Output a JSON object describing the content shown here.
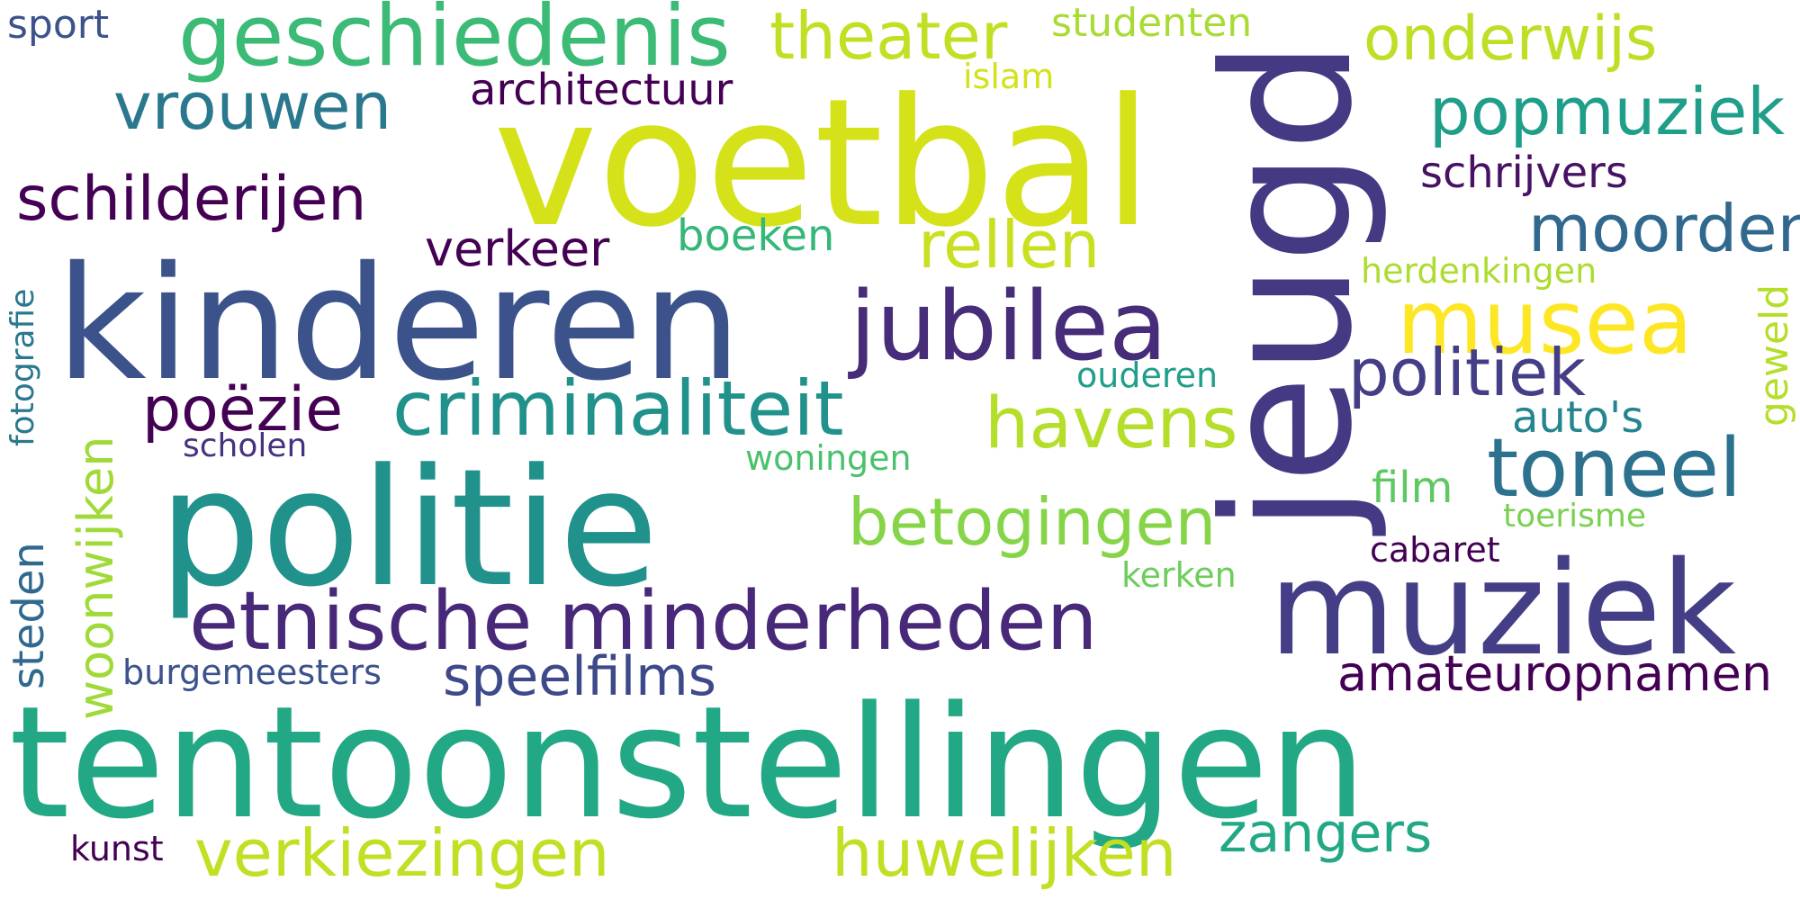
{
  "words": [
    {
      "id": "sport",
      "text": "sport",
      "color": "#3b528b"
    },
    {
      "id": "geschiedenis",
      "text": "geschiedenis",
      "color": "#3bbb75"
    },
    {
      "id": "theater",
      "text": "theater",
      "color": "#c2df23"
    },
    {
      "id": "studenten",
      "text": "studenten",
      "color": "#a8db34"
    },
    {
      "id": "onderwijs",
      "text": "onderwijs",
      "color": "#bddf26"
    },
    {
      "id": "islam",
      "text": "islam",
      "color": "#d2e21b"
    },
    {
      "id": "architectuur",
      "text": "architectuur",
      "color": "#440154"
    },
    {
      "id": "vrouwen",
      "text": "vrouwen",
      "color": "#2a788e"
    },
    {
      "id": "voetbal",
      "text": "voetbal",
      "color": "#d5e21a"
    },
    {
      "id": "jeugd",
      "text": "jeugd",
      "color": "#443983"
    },
    {
      "id": "popmuziek",
      "text": "popmuziek",
      "color": "#1f9e89"
    },
    {
      "id": "schrijvers",
      "text": "schrijvers",
      "color": "#471164"
    },
    {
      "id": "schilderijen",
      "text": "schilderijen",
      "color": "#440154"
    },
    {
      "id": "boeken",
      "text": "boeken",
      "color": "#35b779"
    },
    {
      "id": "rellen",
      "text": "rellen",
      "color": "#c8e020"
    },
    {
      "id": "verkeer",
      "text": "verkeer",
      "color": "#440154"
    },
    {
      "id": "moorden",
      "text": "moorden",
      "color": "#31688e"
    },
    {
      "id": "kinderen",
      "text": "kinderen",
      "color": "#3b528b"
    },
    {
      "id": "jubilea",
      "text": "jubilea",
      "color": "#472c7a"
    },
    {
      "id": "musea",
      "text": "musea",
      "color": "#fde725"
    },
    {
      "id": "herdenkingen",
      "text": "herdenkingen",
      "color": "#addc30"
    },
    {
      "id": "geweld",
      "text": "geweld",
      "color": "#b5de2b"
    },
    {
      "id": "fotografie",
      "text": "fotografie",
      "color": "#2a788e"
    },
    {
      "id": "politiek",
      "text": "politiek",
      "color": "#433e85"
    },
    {
      "id": "ouderen",
      "text": "ouderen",
      "color": "#1f9e89"
    },
    {
      "id": "poezie",
      "text": "poëzie",
      "color": "#440154"
    },
    {
      "id": "criminaliteit",
      "text": "criminaliteit",
      "color": "#21918c"
    },
    {
      "id": "havens",
      "text": "havens",
      "color": "#b5de2b"
    },
    {
      "id": "autos",
      "text": "auto's",
      "color": "#25858e"
    },
    {
      "id": "woonwijken",
      "text": "woonwijken",
      "color": "#a0da39"
    },
    {
      "id": "scholen",
      "text": "scholen",
      "color": "#46327e"
    },
    {
      "id": "woningen",
      "text": "woningen",
      "color": "#4ac16d"
    },
    {
      "id": "politie",
      "text": "politie",
      "color": "#21918c"
    },
    {
      "id": "toneel",
      "text": "toneel",
      "color": "#2c728e"
    },
    {
      "id": "film",
      "text": "film",
      "color": "#5ec962"
    },
    {
      "id": "toerisme",
      "text": "toerisme",
      "color": "#7ad151"
    },
    {
      "id": "betogingen",
      "text": "betogingen",
      "color": "#86d549"
    },
    {
      "id": "steden",
      "text": "steden",
      "color": "#31688e"
    },
    {
      "id": "cabaret",
      "text": "cabaret",
      "color": "#440154"
    },
    {
      "id": "kerken",
      "text": "kerken",
      "color": "#6ccd5a"
    },
    {
      "id": "etnische-minderheden",
      "text": "etnische minderheden",
      "color": "#482878"
    },
    {
      "id": "muziek",
      "text": "muziek",
      "color": "#433e85"
    },
    {
      "id": "burgemeesters",
      "text": "burgemeesters",
      "color": "#3b528b"
    },
    {
      "id": "speelfilms",
      "text": "speelfilms",
      "color": "#3e4989"
    },
    {
      "id": "amateuropnamen",
      "text": "amateuropnamen",
      "color": "#440154"
    },
    {
      "id": "tentoonstellingen",
      "text": "tentoonstellingen",
      "color": "#22a884"
    },
    {
      "id": "kunst",
      "text": "kunst",
      "color": "#440154"
    },
    {
      "id": "verkiezingen",
      "text": "verkiezingen",
      "color": "#c2df23"
    },
    {
      "id": "huwelijken",
      "text": "huwelijken",
      "color": "#c2df23"
    },
    {
      "id": "zangers",
      "text": "zangers",
      "color": "#22a884"
    }
  ]
}
